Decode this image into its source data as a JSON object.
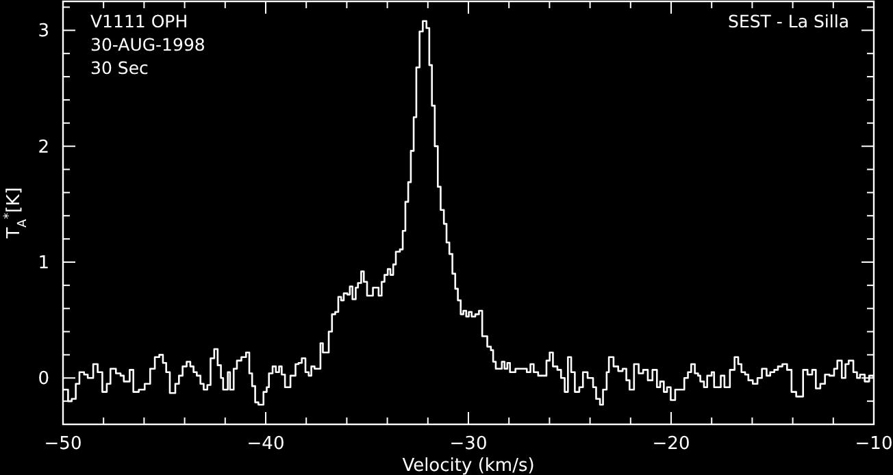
{
  "chart_data": {
    "type": "step",
    "xlabel": "Velocity (km/s)",
    "ylabel": "T$_{A}$$^{*}$[K]",
    "annotations": [
      "V1111 OPH",
      "30-AUG-1998",
      "30 Sec",
      "SEST - La Silla"
    ],
    "xlim": [
      -50,
      -10
    ],
    "ylim": [
      -0.4,
      3.25
    ],
    "xticks": [
      -50,
      {
        "value": -48,
        "label": null
      },
      {
        "value": -46,
        "label": null
      },
      {
        "value": -44,
        "label": null
      },
      {
        "value": -42,
        "label": null
      },
      -40,
      {
        "value": -38,
        "label": null
      },
      {
        "value": -36,
        "label": null
      },
      {
        "value": -34,
        "label": null
      },
      {
        "value": -32,
        "label": null
      },
      -30,
      {
        "value": -28,
        "label": null
      },
      {
        "value": -26,
        "label": null
      },
      {
        "value": -24,
        "label": null
      },
      {
        "value": -22,
        "label": null
      },
      -20,
      {
        "value": -18,
        "label": null
      },
      {
        "value": -16,
        "label": null
      },
      {
        "value": -14,
        "label": null
      },
      {
        "value": -12,
        "label": null
      },
      -10
    ],
    "yticks": [
      {
        "value": -0.2,
        "label": null
      },
      0,
      {
        "value": 0.2,
        "label": null
      },
      {
        "value": 0.4,
        "label": null
      },
      {
        "value": 0.6,
        "label": null
      },
      {
        "value": 0.8,
        "label": null
      },
      1,
      {
        "value": 1.2,
        "label": null
      },
      {
        "value": 1.4,
        "label": null
      },
      {
        "value": 1.6,
        "label": null
      },
      {
        "value": 1.8,
        "label": null
      },
      2,
      {
        "value": 2.2,
        "label": null
      },
      {
        "value": 2.4,
        "label": null
      },
      {
        "value": 2.6,
        "label": null
      },
      {
        "value": 2.8,
        "label": null
      },
      3,
      {
        "value": 3.2,
        "label": null
      }
    ],
    "series": [
      {
        "color": "#ffffff",
        "x": [
          -50.0,
          -49.75,
          -49.57,
          -49.37,
          -49.19,
          -48.96,
          -48.78,
          -48.51,
          -48.29,
          -48.06,
          -47.84,
          -47.66,
          -47.39,
          -47.16,
          -47.0,
          -46.71,
          -46.53,
          -46.26,
          -45.97,
          -45.7,
          -45.47,
          -45.25,
          -45.07,
          -44.91,
          -44.73,
          -44.46,
          -44.28,
          -44.1,
          -43.9,
          -43.72,
          -43.56,
          -43.4,
          -43.22,
          -43.06,
          -42.88,
          -42.72,
          -42.54,
          -42.37,
          -42.21,
          -42.1,
          -41.87,
          -41.76,
          -41.58,
          -41.42,
          -41.2,
          -40.97,
          -40.81,
          -40.67,
          -40.52,
          -40.36,
          -40.11,
          -39.95,
          -39.84,
          -39.66,
          -39.5,
          -39.34,
          -39.21,
          -39.05,
          -38.78,
          -38.53,
          -38.38,
          -38.22,
          -38.04,
          -37.88,
          -37.75,
          -37.59,
          -37.43,
          -37.3,
          -37.18,
          -36.89,
          -36.73,
          -36.57,
          -36.42,
          -36.28,
          -36.15,
          -35.97,
          -35.85,
          -35.72,
          -35.56,
          -35.45,
          -35.29,
          -35.16,
          -35.0,
          -34.71,
          -34.43,
          -34.28,
          -34.14,
          -33.98,
          -33.85,
          -33.71,
          -33.58,
          -33.38,
          -33.24,
          -33.11,
          -32.97,
          -32.84,
          -32.7,
          -32.57,
          -32.41,
          -32.25,
          -32.07,
          -31.93,
          -31.8,
          -31.66,
          -31.51,
          -31.37,
          -31.21,
          -31.08,
          -30.94,
          -30.79,
          -30.65,
          -30.52,
          -30.38,
          -30.25,
          -30.11,
          -29.98,
          -29.84,
          -29.66,
          -29.48,
          -29.32,
          -29.19,
          -29.07,
          -28.89,
          -28.78,
          -28.65,
          -28.51,
          -28.35,
          -28.22,
          -28.08,
          -27.95,
          -27.68,
          -27.46,
          -27.12,
          -26.94,
          -26.78,
          -26.56,
          -26.15,
          -25.99,
          -25.83,
          -25.61,
          -25.43,
          -25.25,
          -25.09,
          -24.93,
          -24.75,
          -24.53,
          -24.35,
          -24.12,
          -23.85,
          -23.7,
          -23.51,
          -23.36,
          -23.18,
          -23.07,
          -22.84,
          -22.61,
          -22.39,
          -22.21,
          -22.05,
          -21.83,
          -21.6,
          -21.38,
          -21.15,
          -20.92,
          -20.7,
          -20.54,
          -20.36,
          -20.2,
          -20.02,
          -19.8,
          -19.57,
          -19.35,
          -19.17,
          -19.01,
          -18.83,
          -18.67,
          -18.56,
          -18.38,
          -18.22,
          -18.0,
          -17.88,
          -17.73,
          -17.55,
          -17.37,
          -17.1,
          -16.87,
          -16.69,
          -16.53,
          -16.35,
          -16.19,
          -15.97,
          -15.74,
          -15.52,
          -15.29,
          -15.11,
          -14.91,
          -14.73,
          -14.51,
          -14.28,
          -14.06,
          -13.83,
          -13.49,
          -13.27,
          -13.04,
          -12.86,
          -12.64,
          -12.41,
          -12.19,
          -11.96,
          -11.8,
          -11.58,
          -11.4,
          -11.24,
          -11.01,
          -10.83,
          -10.68,
          -10.45,
          -10.23,
          -10.02
        ],
        "values": [
          -0.1,
          -0.2,
          -0.18,
          -0.05,
          0.05,
          0.03,
          0.0,
          0.12,
          0.05,
          -0.12,
          -0.05,
          0.08,
          0.04,
          0.02,
          -0.03,
          0.07,
          -0.12,
          -0.1,
          -0.05,
          0.08,
          0.18,
          0.2,
          0.13,
          0.05,
          -0.13,
          -0.05,
          0.02,
          0.1,
          0.14,
          0.1,
          0.05,
          0.02,
          -0.05,
          -0.1,
          -0.06,
          0.17,
          0.25,
          0.11,
          0.0,
          -0.1,
          0.05,
          -0.1,
          0.08,
          0.15,
          0.18,
          0.22,
          0.04,
          -0.07,
          -0.21,
          -0.23,
          -0.12,
          -0.08,
          0.04,
          0.1,
          0.05,
          0.1,
          0.03,
          -0.08,
          0.02,
          0.12,
          0.13,
          0.17,
          0.05,
          0.02,
          0.1,
          0.08,
          0.08,
          0.3,
          0.22,
          0.4,
          0.55,
          0.57,
          0.7,
          0.67,
          0.73,
          0.72,
          0.79,
          0.68,
          0.78,
          0.82,
          0.92,
          0.83,
          0.71,
          0.78,
          0.71,
          0.83,
          0.89,
          0.94,
          0.89,
          0.98,
          1.09,
          1.11,
          1.27,
          1.52,
          1.69,
          1.96,
          2.25,
          2.68,
          2.99,
          3.08,
          3.02,
          2.7,
          2.35,
          2.0,
          1.65,
          1.45,
          1.33,
          1.17,
          1.07,
          0.9,
          0.77,
          0.67,
          0.55,
          0.58,
          0.53,
          0.57,
          0.53,
          0.55,
          0.58,
          0.36,
          0.36,
          0.27,
          0.24,
          0.14,
          0.08,
          0.08,
          0.14,
          0.08,
          0.13,
          0.05,
          0.08,
          0.08,
          0.05,
          0.12,
          0.05,
          0.02,
          0.15,
          0.22,
          0.1,
          0.07,
          0.0,
          -0.12,
          0.18,
          0.05,
          -0.12,
          -0.08,
          0.05,
          0.0,
          -0.08,
          -0.18,
          -0.23,
          -0.1,
          0.05,
          0.18,
          0.1,
          0.06,
          0.08,
          -0.02,
          -0.1,
          0.12,
          0.04,
          0.07,
          -0.02,
          0.07,
          -0.08,
          -0.03,
          -0.12,
          -0.08,
          -0.19,
          -0.1,
          -0.1,
          0.0,
          0.05,
          0.12,
          0.04,
          0.02,
          -0.03,
          -0.08,
          0.02,
          0.05,
          -0.08,
          -0.08,
          0.02,
          -0.08,
          0.07,
          0.18,
          0.12,
          0.05,
          0.03,
          -0.02,
          -0.05,
          0.0,
          0.08,
          0.02,
          0.05,
          0.07,
          0.1,
          0.12,
          0.07,
          -0.12,
          -0.16,
          0.07,
          0.03,
          0.07,
          -0.09,
          -0.05,
          0.03,
          0.02,
          0.08,
          0.15,
          0.0,
          0.12,
          0.15,
          0.05,
          0.0,
          0.03,
          -0.03,
          0.02,
          0.0
        ]
      }
    ]
  }
}
